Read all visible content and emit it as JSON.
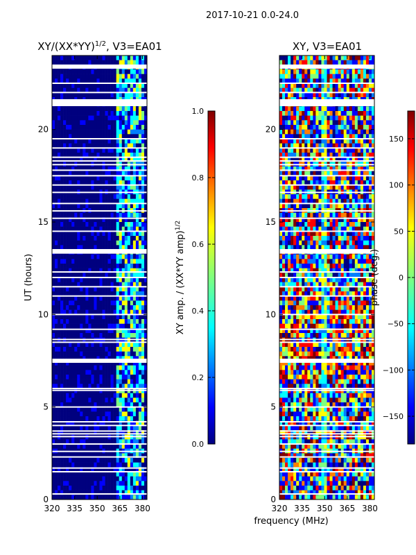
{
  "suptitle": "2017-10-21 0.0-24.0",
  "colors": {
    "jet": [
      "#00007f",
      "#0000ff",
      "#007fff",
      "#00ffff",
      "#7fff7f",
      "#ffff00",
      "#ff7f00",
      "#ff0000",
      "#7f0000"
    ]
  },
  "chart_data": [
    {
      "type": "heatmap",
      "title": "XY/(XX*YY)",
      "title_exponent": "1/2",
      "title_suffix": ", V3=EA01",
      "xlabel": "",
      "ylabel": "UT (hours)",
      "xlim": [
        320,
        383
      ],
      "ylim": [
        0,
        24
      ],
      "xticks": [
        320,
        335,
        350,
        365,
        380
      ],
      "yticks": [
        0,
        5,
        10,
        15,
        20
      ],
      "colorbar": {
        "label": "XY amp. / (XX*YY amp)",
        "label_exponent": "1/2",
        "range": [
          0.0,
          1.0
        ],
        "ticks": [
          "0.0",
          "0.2",
          "0.4",
          "0.6",
          "0.8",
          "1.0"
        ],
        "tick_values": [
          0.0,
          0.2,
          0.4,
          0.6,
          0.8,
          1.0
        ]
      },
      "gap_rows_hours": [
        0.3,
        1.5,
        1.7,
        2.3,
        2.6,
        3.0,
        3.4,
        3.55,
        3.7,
        4.0,
        4.2,
        5.0,
        5.9,
        6.0,
        7.5,
        8.5,
        8.65,
        9.2,
        10.0,
        11.0,
        11.5,
        12.0,
        12.3,
        13.4,
        13.5,
        14.5,
        15.2,
        15.6,
        16.0,
        16.6,
        17.0,
        17.5,
        17.8,
        18.1,
        18.3,
        18.5,
        19.0,
        19.5,
        21.3,
        21.45,
        21.6,
        22.0,
        22.5,
        23.4
      ]
    },
    {
      "type": "heatmap",
      "title": "XY, V3=EA01",
      "xlabel": "frequency (MHz)",
      "ylabel": "",
      "xlim": [
        320,
        383
      ],
      "ylim": [
        0,
        24
      ],
      "xticks": [
        320,
        335,
        350,
        365,
        380
      ],
      "yticks": [
        0,
        5,
        10,
        15,
        20
      ],
      "colorbar": {
        "label": "phase (deg.)",
        "range": [
          -180,
          180
        ],
        "ticks": [
          "−150",
          "−100",
          "−50",
          "0",
          "50",
          "100",
          "150"
        ],
        "tick_values": [
          -150,
          -100,
          -50,
          0,
          50,
          100,
          150
        ]
      },
      "gap_rows_hours": [
        0.3,
        1.5,
        1.7,
        2.3,
        2.6,
        3.0,
        3.4,
        3.55,
        3.7,
        4.0,
        4.2,
        5.0,
        5.9,
        6.0,
        7.5,
        8.5,
        8.65,
        9.2,
        10.0,
        11.0,
        11.5,
        12.0,
        12.3,
        13.4,
        13.5,
        14.5,
        15.2,
        15.6,
        16.0,
        16.6,
        17.0,
        17.5,
        17.8,
        18.1,
        18.3,
        18.5,
        19.0,
        19.5,
        21.3,
        21.45,
        21.6,
        22.0,
        22.5,
        23.4
      ]
    }
  ]
}
